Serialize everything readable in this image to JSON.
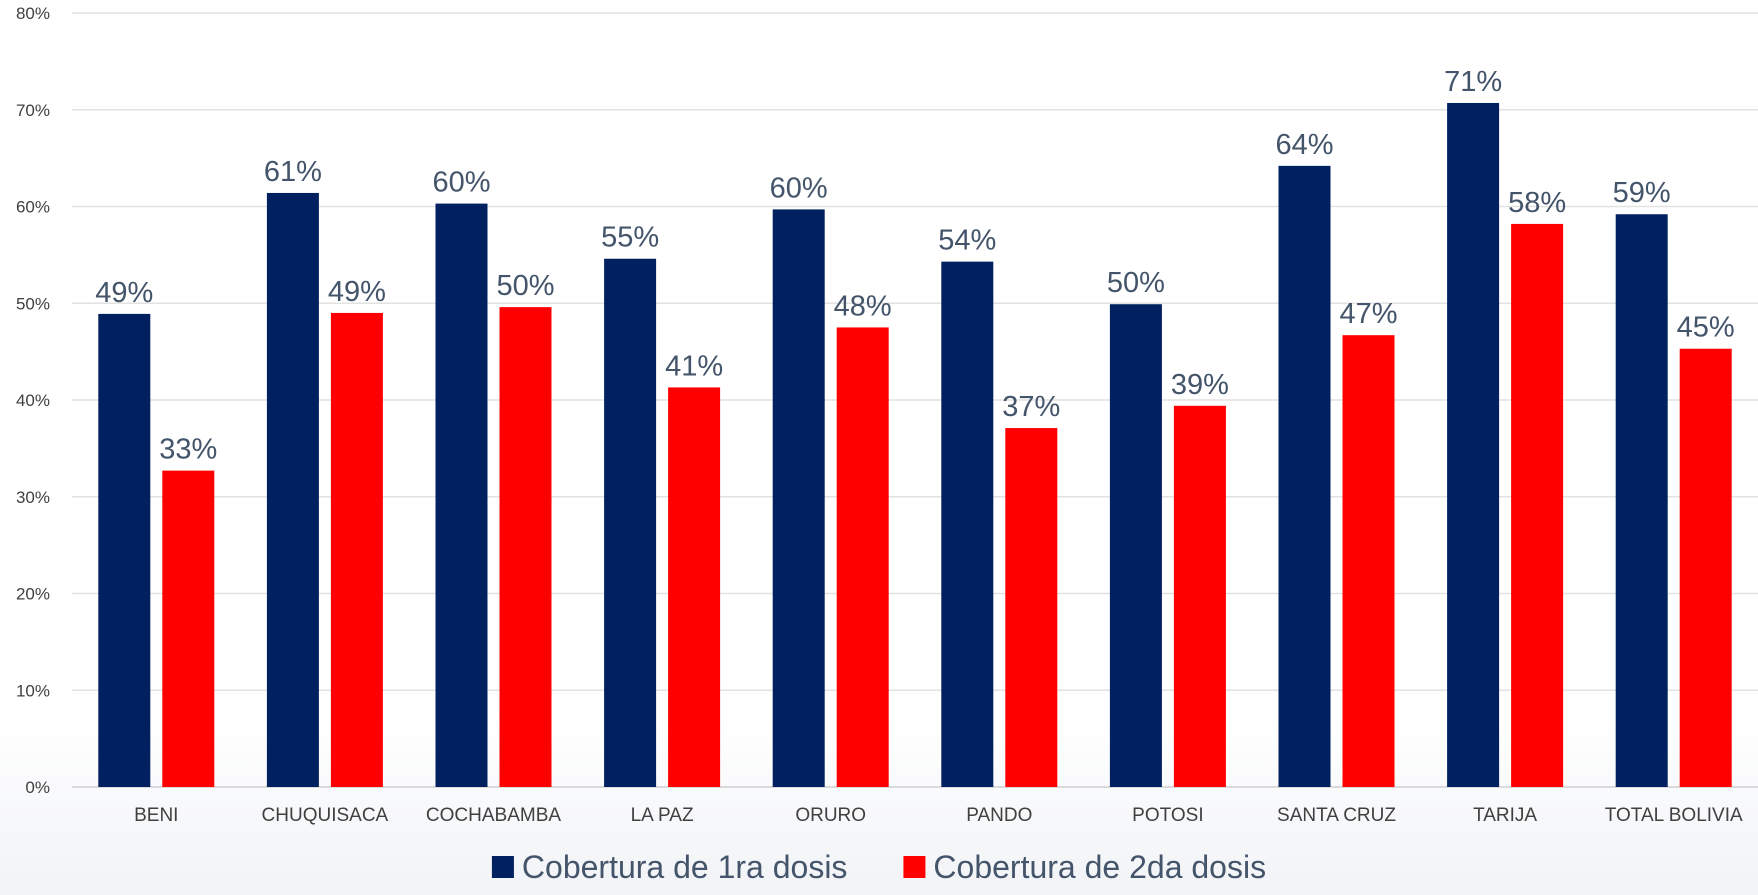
{
  "chart_data": {
    "type": "bar",
    "categories": [
      "BENI",
      "CHUQUISACA",
      "COCHABAMBA",
      "LA PAZ",
      "ORURO",
      "PANDO",
      "POTOSI",
      "SANTA CRUZ",
      "TARIJA",
      "TOTAL BOLIVIA"
    ],
    "series": [
      {
        "name": "Cobertura de 1ra dosis",
        "color": "#002060",
        "values": [
          48.9,
          61.4,
          60.3,
          54.6,
          59.7,
          54.3,
          49.9,
          64.2,
          70.7,
          59.2
        ],
        "labels": [
          "49%",
          "61%",
          "60%",
          "55%",
          "60%",
          "54%",
          "50%",
          "64%",
          "71%",
          "59%"
        ]
      },
      {
        "name": "Cobertura de 2da dosis",
        "color": "#ff0000",
        "values": [
          32.7,
          49.0,
          49.6,
          41.3,
          47.5,
          37.1,
          39.4,
          46.7,
          58.2,
          45.3
        ],
        "labels": [
          "33%",
          "49%",
          "50%",
          "41%",
          "48%",
          "37%",
          "39%",
          "47%",
          "58%",
          "45%"
        ]
      }
    ],
    "ylim": [
      0,
      80
    ],
    "yticks": [
      0,
      10,
      20,
      30,
      40,
      50,
      60,
      70,
      80
    ],
    "ytick_labels": [
      "0%",
      "10%",
      "20%",
      "30%",
      "40%",
      "50%",
      "60%",
      "70%",
      "80%"
    ],
    "title": "",
    "xlabel": "",
    "ylabel": "",
    "grid": true,
    "legend": "bottom"
  }
}
